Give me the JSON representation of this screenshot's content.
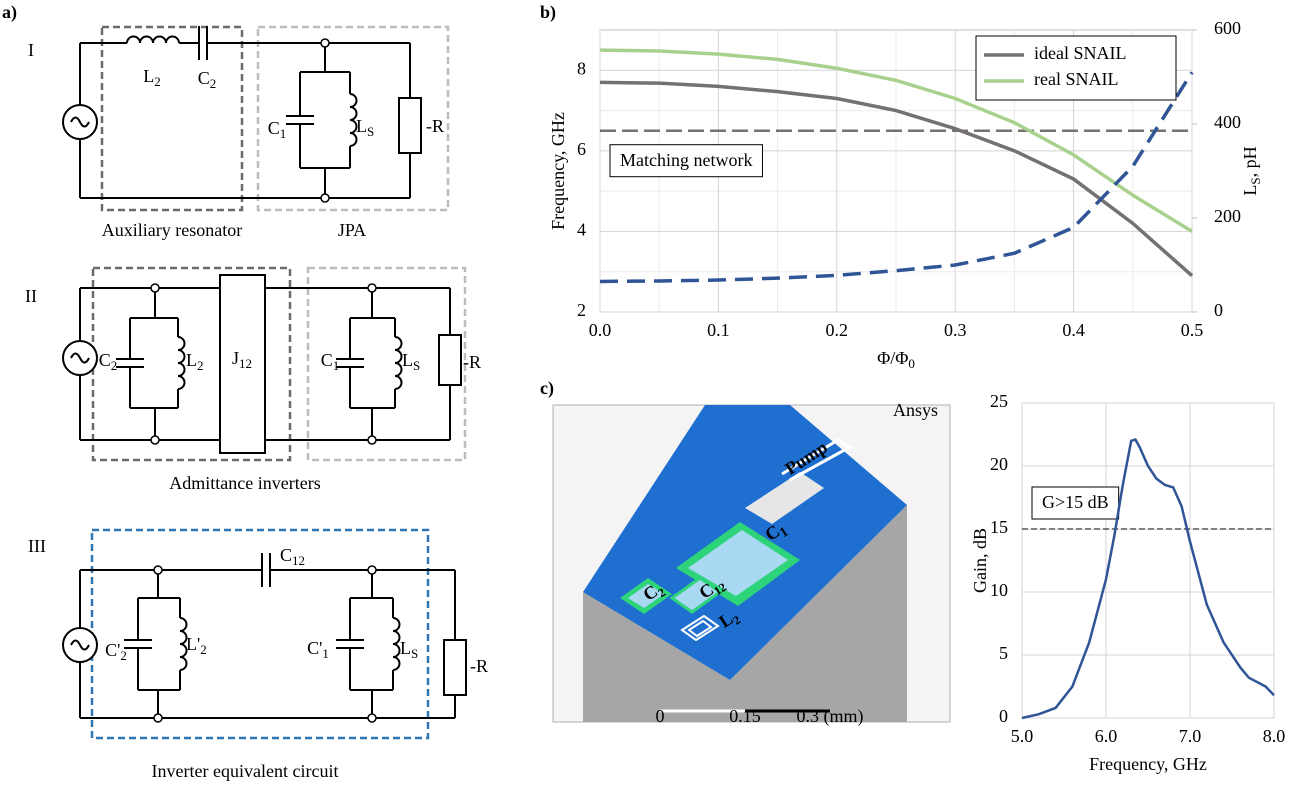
{
  "panel_labels": [
    "a)",
    "b)",
    "c)"
  ],
  "circuits": [
    {
      "numeral": "I",
      "labels": {
        "l2": [
          "L",
          "2"
        ],
        "c2": [
          "C",
          "2"
        ],
        "c1": [
          "C",
          "1"
        ],
        "ls": [
          "L",
          "S"
        ],
        "r": [
          "-R"
        ]
      },
      "captions": [
        "Auxiliary resonator",
        "JPA"
      ]
    },
    {
      "numeral": "II",
      "labels": {
        "c2": [
          "C",
          "2"
        ],
        "l2": [
          "L",
          "2"
        ],
        "j12": [
          "J",
          "12"
        ],
        "c1": [
          "C",
          "1"
        ],
        "ls": [
          "L",
          "S"
        ],
        "r": [
          "-R"
        ]
      },
      "captions": [
        "Admittance inverters"
      ]
    },
    {
      "numeral": "III",
      "labels": {
        "c12": [
          "C",
          "12"
        ],
        "c2": [
          "C'",
          "2"
        ],
        "l2": [
          "L'",
          "2"
        ],
        "c1": [
          "C'",
          "1"
        ],
        "ls": [
          "L",
          "S"
        ],
        "r": [
          "-R"
        ]
      },
      "captions": [
        "Inverter equivalent circuit"
      ]
    }
  ],
  "render": {
    "labels": {
      "pump": [
        "Pump"
      ],
      "c1": [
        "C",
        "1"
      ],
      "c12": [
        "C",
        "12"
      ],
      "c2": [
        "C",
        "2"
      ],
      "l2": [
        "L",
        "2"
      ]
    },
    "watermark": "Ansys",
    "scale": [
      "0",
      "0.15",
      "0.3 (mm)"
    ]
  },
  "chart_data": [
    {
      "type": "line",
      "x_label": [
        "Φ/Φ",
        "0"
      ],
      "y_label": [
        "Frequency, GHz"
      ],
      "y2_label": [
        "L",
        "S",
        ", pH"
      ],
      "x": [
        0,
        0.05,
        0.1,
        0.15,
        0.2,
        0.25,
        0.3,
        0.35,
        0.4,
        0.45,
        0.5
      ],
      "xlim": [
        0,
        0.5
      ],
      "xticks": [
        {
          "value": 0,
          "label": "0.0"
        },
        0.1,
        0.2,
        0.3,
        0.4,
        0.5
      ],
      "ylim": [
        2,
        9
      ],
      "yticks": [
        2,
        4,
        6,
        8
      ],
      "y2lim": [
        0,
        600
      ],
      "y2ticks": [
        0,
        200,
        400,
        600
      ],
      "grid": true,
      "minor_grid": true,
      "legend": "upper right",
      "series": [
        {
          "name": "ideal SNAIL",
          "color": "#767171",
          "values": [
            7.7,
            7.68,
            7.6,
            7.47,
            7.3,
            7.0,
            6.55,
            6.0,
            5.3,
            4.2,
            2.9
          ]
        },
        {
          "name": "real SNAIL",
          "color": "#a9d18e",
          "values": [
            8.5,
            8.48,
            8.4,
            8.27,
            8.05,
            7.75,
            7.3,
            6.7,
            5.9,
            4.9,
            4.0
          ]
        },
        {
          "color": "#2f5597",
          "dash": true,
          "axis": "y2",
          "values": [
            65,
            66,
            68,
            72,
            78,
            88,
            100,
            125,
            180,
            310,
            510
          ]
        }
      ],
      "hline": {
        "value": 6.5,
        "color": "#767171",
        "label": "Matching network"
      }
    },
    {
      "type": "line",
      "x_label": [
        "Frequency, GHz"
      ],
      "y_label": [
        "Gain, dB"
      ],
      "x": [
        5.0,
        5.2,
        5.4,
        5.6,
        5.8,
        6.0,
        6.1,
        6.2,
        6.3,
        6.35,
        6.4,
        6.5,
        6.6,
        6.7,
        6.8,
        6.9,
        7.0,
        7.2,
        7.4,
        7.6,
        7.7,
        7.9,
        8.0
      ],
      "xlim": [
        5,
        8
      ],
      "xticks": [
        {
          "value": 5,
          "label": "5.0"
        },
        {
          "value": 6,
          "label": "6.0"
        },
        {
          "value": 7,
          "label": "7.0"
        },
        {
          "value": 8,
          "label": "8.0"
        }
      ],
      "ylim": [
        0,
        25
      ],
      "yticks": [
        0,
        5,
        10,
        15,
        20,
        25
      ],
      "grid": true,
      "minor_grid": false,
      "series": [
        {
          "color": "#2f5597",
          "values": [
            0,
            0.3,
            0.8,
            2.5,
            6,
            11,
            14.5,
            18.5,
            22,
            22.1,
            21.5,
            20,
            19,
            18.5,
            18.3,
            16.8,
            14,
            9,
            6,
            4,
            3.2,
            2.5,
            1.8
          ]
        }
      ],
      "hline": {
        "value": 15,
        "color": "#000000",
        "label": "G>15 dB"
      }
    }
  ]
}
